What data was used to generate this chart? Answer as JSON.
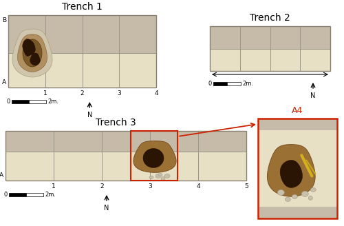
{
  "bg": "#ffffff",
  "upper_color": "#c5bba8",
  "lower_color": "#e8e0c5",
  "grid_color": "#9a9585",
  "border_color": "#888070",
  "red_color": "#cc2200",
  "pit_brown_outer": "#a08050",
  "pit_brown_mid": "#7a5c28",
  "pit_dark": "#3a2205",
  "stone_color": "#c0b8a0",
  "bone_yellow": "#d4b030",
  "t1_title": "Trench 1",
  "t2_title": "Trench 2",
  "t3_title": "Trench 3",
  "a4_title": "A4"
}
